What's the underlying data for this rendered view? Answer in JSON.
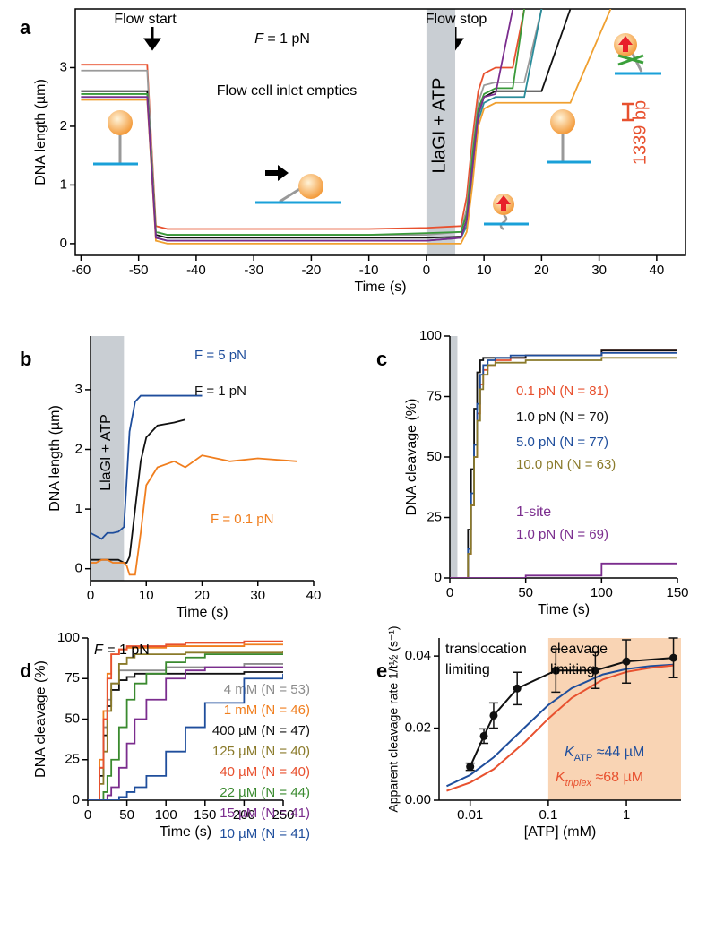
{
  "chart_data": [
    {
      "type": "line",
      "panel_label": "a",
      "xlabel": "Time (s)",
      "ylabel": "DNA length (µm)",
      "xlim": [
        -61,
        45
      ],
      "ylim": [
        -0.2,
        4
      ],
      "xticks": [
        -60,
        -50,
        -40,
        -30,
        -20,
        -10,
        0,
        10,
        20,
        30,
        40
      ],
      "yticks": [
        0,
        1,
        2,
        3
      ],
      "shade": {
        "x": [
          0,
          5
        ],
        "color": "#c9ced3"
      },
      "x": [
        -60,
        -48.5,
        -47,
        -45,
        -30,
        -10,
        0,
        6,
        7,
        8,
        9,
        10,
        12,
        15,
        17,
        20,
        25,
        32,
        40
      ],
      "series": [
        {
          "color": "#e8512f",
          "values": [
            3.05,
            3.05,
            0.3,
            0.25,
            0.25,
            0.25,
            0.27,
            0.3,
            0.8,
            1.8,
            2.6,
            2.9,
            3.0,
            3.0,
            4,
            null,
            null,
            null,
            null
          ]
        },
        {
          "color": "#9a9a9a",
          "values": [
            2.95,
            2.95,
            0.2,
            0.15,
            0.15,
            0.15,
            0.15,
            0.2,
            0.6,
            1.6,
            2.4,
            2.7,
            2.75,
            2.75,
            2.75,
            4,
            null,
            null,
            null
          ]
        },
        {
          "color": "#111111",
          "values": [
            2.6,
            2.6,
            0.15,
            0.1,
            0.1,
            0.1,
            0.1,
            0.12,
            0.4,
            1.4,
            2.2,
            2.5,
            2.6,
            2.6,
            2.6,
            2.6,
            4,
            null,
            null
          ]
        },
        {
          "color": "#3a9a3a",
          "values": [
            2.55,
            2.55,
            0.2,
            0.15,
            0.15,
            0.15,
            0.18,
            0.2,
            0.5,
            1.5,
            2.3,
            2.55,
            2.65,
            2.65,
            4,
            null,
            null,
            null,
            null
          ]
        },
        {
          "color": "#2a8c9a",
          "values": [
            2.5,
            2.5,
            0.1,
            0.05,
            0.05,
            0.05,
            0.05,
            0.1,
            0.3,
            1.2,
            2.1,
            2.4,
            2.5,
            2.5,
            2.5,
            4,
            null,
            null,
            null
          ]
        },
        {
          "color": "#f0a030",
          "values": [
            2.45,
            2.45,
            0.05,
            0,
            0,
            0,
            0,
            0,
            0.2,
            1.0,
            2.0,
            2.3,
            2.4,
            2.4,
            2.4,
            2.4,
            2.4,
            4,
            null
          ]
        },
        {
          "color": "#7b2d8e",
          "values": [
            2.5,
            2.5,
            0.1,
            0.05,
            0.05,
            0.05,
            0.05,
            0.1,
            0.4,
            1.3,
            2.2,
            2.5,
            2.55,
            4,
            null,
            null,
            null,
            null,
            null
          ]
        }
      ],
      "annotations": [
        {
          "text": "Flow start"
        },
        {
          "text": "Flow stop"
        },
        {
          "parts": [
            {
              "text": "F",
              "italic": true
            },
            {
              "text": " = 1 pN"
            }
          ]
        },
        {
          "text": "Flow cell inlet empties"
        },
        {
          "text": "LlaGI + ATP"
        },
        {
          "text": "1339 bp",
          "color": "#e8512f"
        }
      ]
    },
    {
      "type": "line",
      "panel_label": "b",
      "xlabel": "Time (s)",
      "ylabel": "DNA length (µm)",
      "xlim": [
        0,
        40
      ],
      "ylim": [
        -0.2,
        3.9
      ],
      "xticks": [
        0,
        10,
        20,
        30,
        40
      ],
      "yticks": [
        0,
        1,
        2,
        3
      ],
      "shade": {
        "x": [
          0,
          6
        ],
        "color": "#c9ced3"
      },
      "x": [
        0,
        1,
        2,
        3,
        4,
        5,
        6,
        6.5,
        7,
        8,
        9,
        10,
        12,
        15,
        17,
        20,
        25,
        30,
        37
      ],
      "series": [
        {
          "name": "F = 5 pN",
          "color": "#1f4e9c",
          "values": [
            0.6,
            0.55,
            0.5,
            0.6,
            0.6,
            0.62,
            0.7,
            1.5,
            2.3,
            2.8,
            2.9,
            2.9,
            2.9,
            2.9,
            2.9,
            2.9,
            null,
            null,
            null
          ]
        },
        {
          "name": "F = 1 pN",
          "color": "#111111",
          "values": [
            0.15,
            0.15,
            0.15,
            0.15,
            0.15,
            0.15,
            0.1,
            0.1,
            0.2,
            1.0,
            1.8,
            2.2,
            2.4,
            2.45,
            2.5,
            null,
            null,
            null,
            null
          ]
        },
        {
          "name": "F = 0.1 pN",
          "color": "#f07e1e",
          "values": [
            0.1,
            0.1,
            0.15,
            0.15,
            0.1,
            0.1,
            0.1,
            0.05,
            -0.1,
            -0.1,
            0.6,
            1.4,
            1.7,
            1.8,
            1.7,
            1.9,
            1.8,
            1.85,
            1.8
          ]
        }
      ],
      "annotations": [
        {
          "text": "LlaGI + ATP"
        }
      ]
    },
    {
      "type": "line",
      "panel_label": "c",
      "xlabel": "Time (s)",
      "ylabel": "DNA cleavage (%)",
      "drawstyle": "steps-post",
      "xlim": [
        0,
        150
      ],
      "ylim": [
        0,
        100
      ],
      "xticks": [
        0,
        50,
        100,
        150
      ],
      "yticks": [
        0,
        25,
        50,
        75,
        100
      ],
      "shade": {
        "x": [
          0,
          5
        ],
        "color": "#c9ced3"
      },
      "x": [
        0,
        10,
        12,
        14,
        16,
        18,
        20,
        22,
        25,
        30,
        40,
        50,
        100,
        150
      ],
      "series": [
        {
          "name": "0.1 pN (N = 81)",
          "color": "#e8512f",
          "values": [
            0,
            0,
            10,
            30,
            50,
            68,
            80,
            86,
            88,
            90,
            91,
            92,
            94,
            96
          ]
        },
        {
          "name": "1.0 pN (N = 70)",
          "color": "#111111",
          "values": [
            0,
            0,
            20,
            45,
            70,
            85,
            90,
            91,
            91,
            91,
            91,
            92,
            94,
            95
          ]
        },
        {
          "name": "5.0 pN (N = 77)",
          "color": "#1f4e9c",
          "values": [
            0,
            0,
            12,
            35,
            55,
            72,
            84,
            88,
            90,
            91,
            92,
            92,
            93,
            94
          ]
        },
        {
          "name": "10.0 pN (N = 63)",
          "color": "#8a7a2a",
          "values": [
            0,
            0,
            10,
            30,
            50,
            65,
            78,
            84,
            88,
            89,
            89,
            90,
            91,
            92
          ]
        },
        {
          "name": "1.0 pN (N = 69)",
          "color": "#7b2d8e",
          "values": [
            0,
            0,
            0,
            0,
            0,
            0,
            0,
            0,
            0,
            0,
            0,
            1,
            6,
            11
          ]
        }
      ],
      "annotations": [
        {
          "text": "1-site",
          "color": "#7b2d8e"
        }
      ]
    },
    {
      "type": "line",
      "panel_label": "d",
      "xlabel": "Time (s)",
      "ylabel": "DNA cleavage (%)",
      "drawstyle": "steps-post",
      "xlim": [
        0,
        250
      ],
      "ylim": [
        0,
        100
      ],
      "xticks": [
        0,
        50,
        100,
        150,
        200,
        250
      ],
      "yticks": [
        0,
        25,
        50,
        75,
        100
      ],
      "x": [
        0,
        10,
        15,
        20,
        25,
        30,
        40,
        50,
        60,
        75,
        100,
        125,
        150,
        200,
        250
      ],
      "series": [
        {
          "name": "4 mM (N = 53)",
          "color": "#8c8c8c",
          "values": [
            0,
            0,
            20,
            45,
            62,
            72,
            80,
            80,
            80,
            80,
            82,
            82,
            82,
            84,
            84
          ]
        },
        {
          "name": "1 mM (N = 46)",
          "color": "#f07e1e",
          "values": [
            0,
            0,
            25,
            55,
            78,
            90,
            93,
            94,
            94,
            94,
            95,
            95,
            95,
            96,
            96
          ]
        },
        {
          "name": "400 µM (N = 47)",
          "color": "#111111",
          "values": [
            0,
            0,
            15,
            40,
            58,
            68,
            74,
            76,
            78,
            78,
            78,
            78,
            78,
            79,
            79
          ]
        },
        {
          "name": "125 µM (N = 40)",
          "color": "#8a7a2a",
          "values": [
            0,
            0,
            10,
            30,
            55,
            72,
            84,
            88,
            90,
            90,
            90,
            91,
            91,
            91,
            92
          ]
        },
        {
          "name": "40 µM (N = 40)",
          "color": "#e8512f",
          "values": [
            0,
            0,
            20,
            50,
            75,
            90,
            93,
            95,
            95,
            95,
            96,
            97,
            97,
            98,
            98
          ]
        },
        {
          "name": "22 µM (N = 44)",
          "color": "#3a8a2f",
          "values": [
            0,
            0,
            0,
            5,
            15,
            25,
            45,
            62,
            72,
            78,
            85,
            88,
            90,
            90,
            90
          ]
        },
        {
          "name": "15 µM (N = 41)",
          "color": "#7b2d8e",
          "values": [
            0,
            0,
            0,
            0,
            3,
            8,
            20,
            35,
            50,
            62,
            75,
            80,
            82,
            82,
            82
          ]
        },
        {
          "name": "10 µM (N = 41)",
          "color": "#1f4e9c",
          "values": [
            0,
            0,
            0,
            0,
            0,
            0,
            2,
            5,
            8,
            15,
            30,
            45,
            60,
            75,
            78
          ]
        }
      ],
      "annotations": [
        {
          "parts": [
            {
              "text": "F",
              "italic": true
            },
            {
              "text": " = 1 pN"
            }
          ]
        }
      ]
    },
    {
      "type": "line",
      "panel_label": "e",
      "xlabel": "[ATP] (mM)",
      "ylabel": "Apparent cleavage rate 1/t½ (s⁻¹)",
      "xscale": "log",
      "xlim": [
        0.004,
        5
      ],
      "ylim": [
        0,
        0.045
      ],
      "xticks": [
        0.01,
        0.1,
        1
      ],
      "yticks": [
        {
          "value": 0,
          "label": "0.00"
        },
        {
          "value": 0.02,
          "label": "0.02"
        },
        {
          "value": 0.04,
          "label": "0.04"
        }
      ],
      "shade": {
        "x": [
          0.1,
          5
        ],
        "color": "#f9d4b4"
      },
      "series": [
        {
          "color": "#1f4e9c",
          "x": [
            0.005,
            0.01,
            0.02,
            0.05,
            0.1,
            0.2,
            0.5,
            1,
            2,
            4
          ],
          "values": [
            0.0039,
            0.007,
            0.0119,
            0.0202,
            0.0264,
            0.0311,
            0.0349,
            0.0364,
            0.0372,
            0.0376
          ]
        },
        {
          "color": "#e8512f",
          "x": [
            0.005,
            0.01,
            0.02,
            0.05,
            0.1,
            0.2,
            0.5,
            1,
            2,
            4
          ],
          "values": [
            0.0026,
            0.0049,
            0.0086,
            0.0161,
            0.0226,
            0.0284,
            0.0335,
            0.0356,
            0.0367,
            0.0374
          ]
        },
        {
          "color": "#111111",
          "marker": true,
          "x": [
            0.01,
            0.015,
            0.02,
            0.04,
            0.125,
            0.4,
            1,
            4
          ],
          "values": [
            0.0093,
            0.0178,
            0.0235,
            0.031,
            0.036,
            0.036,
            0.0385,
            0.0395
          ],
          "errors": [
            0.001,
            0.002,
            0.0035,
            0.0045,
            0.006,
            0.005,
            0.006,
            0.0055
          ]
        }
      ],
      "annotations": [
        {
          "text": "translocation"
        },
        {
          "text": "limiting"
        },
        {
          "text": "cleavage"
        },
        {
          "text": "limiting"
        },
        {
          "color": "#1f4e9c",
          "parts": [
            {
              "text": "K",
              "italic": true
            },
            {
              "text": "ATP",
              "sub": true
            },
            {
              "text": " ≈44 µM"
            }
          ]
        },
        {
          "color": "#e8512f",
          "parts": [
            {
              "text": "K",
              "italic": true
            },
            {
              "text": "triplex",
              "sub": true,
              "italic": true
            },
            {
              "text": " ≈68 µM"
            }
          ]
        }
      ]
    }
  ]
}
